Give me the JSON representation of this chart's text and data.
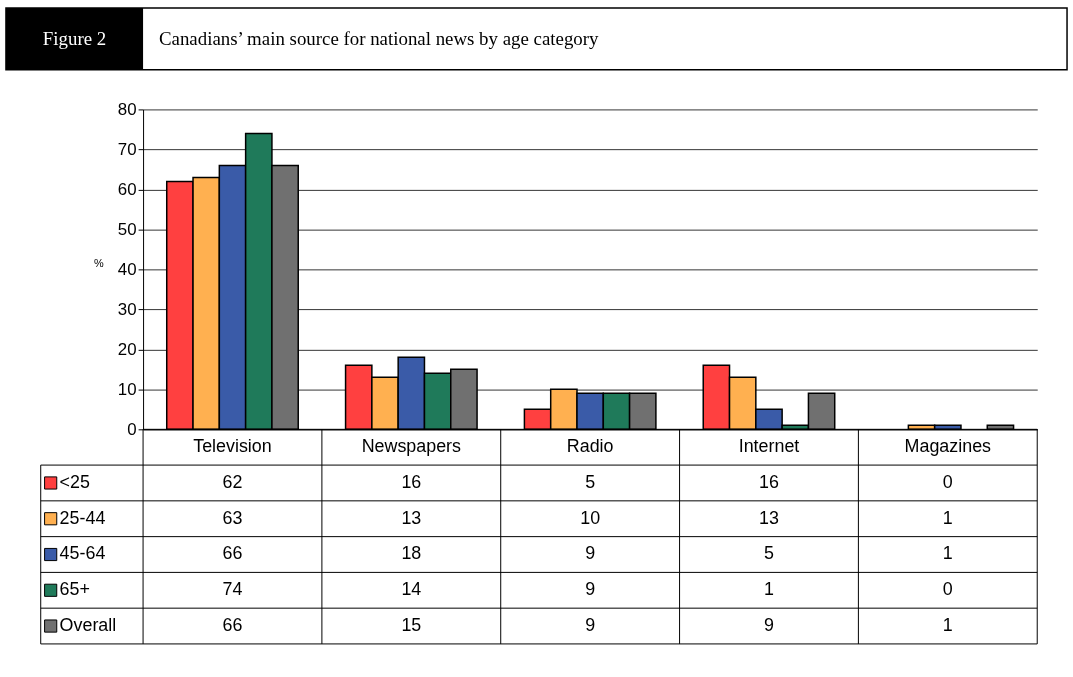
{
  "chart_data": {
    "type": "bar",
    "title": "Canadians’ main source for national news by age category",
    "ylabel": "%",
    "annotations": [
      "Figure 2"
    ],
    "categories": [
      "Television",
      "Newspapers",
      "Radio",
      "Internet",
      "Magazines"
    ],
    "series": [
      {
        "name": "<25",
        "color": "#ff4040",
        "values": [
          62,
          16,
          5,
          16,
          0
        ]
      },
      {
        "name": "25-44",
        "color": "#ffb050",
        "values": [
          63,
          13,
          10,
          13,
          1
        ]
      },
      {
        "name": "45-64",
        "color": "#3a5ba8",
        "values": [
          66,
          18,
          9,
          5,
          1
        ]
      },
      {
        "name": "65+",
        "color": "#1f7a5a",
        "values": [
          74,
          14,
          9,
          1,
          0
        ]
      },
      {
        "name": "Overall",
        "color": "#707070",
        "values": [
          66,
          15,
          9,
          9,
          1
        ]
      }
    ],
    "ylim": [
      0,
      80
    ],
    "yticks": [
      0,
      10,
      20,
      30,
      40,
      50,
      60,
      70,
      80
    ],
    "grid": "y",
    "data_labels": true,
    "legend": "bottom left"
  }
}
